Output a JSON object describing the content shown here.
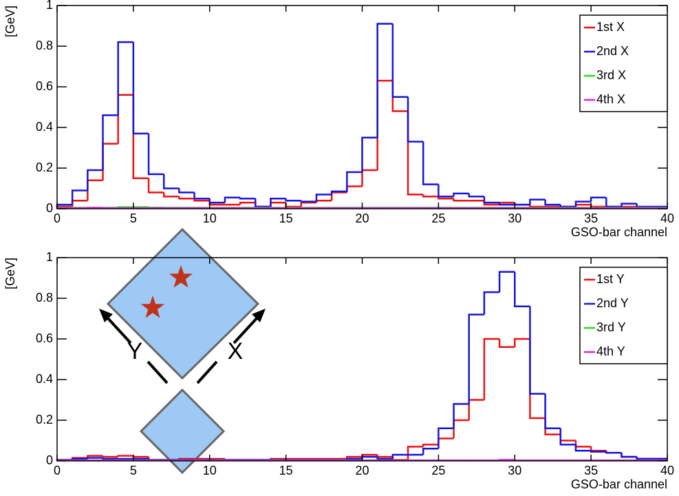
{
  "chart_data": [
    {
      "type": "histogram",
      "ylabel": "[GeV]",
      "xlabel": "GSO-bar channel",
      "bins": [
        0,
        1,
        2,
        3,
        4,
        5,
        6,
        7,
        8,
        9,
        10,
        11,
        12,
        13,
        14,
        15,
        16,
        17,
        18,
        19,
        20,
        21,
        22,
        23,
        24,
        25,
        26,
        27,
        28,
        29,
        30,
        31,
        32,
        33,
        34,
        35,
        36,
        37,
        38,
        39,
        40
      ],
      "xlim": [
        0,
        40
      ],
      "ylim": [
        0,
        1
      ],
      "xticks": [
        0,
        5,
        10,
        15,
        20,
        25,
        30,
        35,
        40
      ],
      "yticks": [
        0,
        0.2,
        0.4,
        0.6,
        0.8,
        1
      ],
      "legend": "upper right",
      "series": [
        {
          "name": "1st X",
          "color": "#ee1111",
          "values": [
            0.01,
            0.04,
            0.14,
            0.32,
            0.56,
            0.15,
            0.08,
            0.06,
            0.05,
            0.04,
            0.02,
            0.02,
            0.03,
            0.01,
            0.03,
            0.01,
            0.03,
            0.04,
            0.08,
            0.11,
            0.19,
            0.63,
            0.48,
            0.07,
            0.06,
            0.05,
            0.04,
            0.04,
            0.02,
            0.03,
            0.02,
            0.01,
            0.01,
            0.01,
            0.02,
            0.01,
            0.01,
            0.01,
            0.005,
            0.005
          ]
        },
        {
          "name": "2nd X",
          "color": "#1515dd",
          "values": [
            0.02,
            0.09,
            0.19,
            0.46,
            0.82,
            0.37,
            0.17,
            0.1,
            0.08,
            0.05,
            0.03,
            0.055,
            0.05,
            0.01,
            0.05,
            0.04,
            0.035,
            0.07,
            0.085,
            0.18,
            0.35,
            0.91,
            0.55,
            0.33,
            0.12,
            0.06,
            0.075,
            0.06,
            0.03,
            0.02,
            0.02,
            0.045,
            0.02,
            0.01,
            0.035,
            0.055,
            0.01,
            0.025,
            0.01,
            0.01
          ]
        },
        {
          "name": "3rd X",
          "color": "#22dd22",
          "values": [
            0.005,
            0.005,
            0.005,
            0.005,
            0.008,
            0.008,
            0.006,
            0.005,
            0.005,
            0.005,
            0.005,
            0.005,
            0.005,
            0.005,
            0.005,
            0.005,
            0.005,
            0.005,
            0.005,
            0.005,
            0.005,
            0.005,
            0.005,
            0.005,
            0.005,
            0.005,
            0.005,
            0.005,
            0.005,
            0.005,
            0.005,
            0.005,
            0.005,
            0.005,
            0.005,
            0.005,
            0.005,
            0.005,
            0.005,
            0.005
          ]
        },
        {
          "name": "4th X",
          "color": "#dd22dd",
          "values": [
            0.003,
            0.003,
            0.005,
            0.003,
            0.003,
            0.003,
            0.003,
            0.003,
            0.003,
            0.003,
            0.003,
            0.003,
            0.003,
            0.003,
            0.003,
            0.003,
            0.003,
            0.003,
            0.003,
            0.003,
            0.003,
            0.003,
            0.003,
            0.003,
            0.003,
            0.003,
            0.003,
            0.003,
            0.003,
            0.003,
            0.003,
            0.003,
            0.003,
            0.003,
            0.003,
            0.003,
            0.003,
            0.003,
            0.003,
            0.003
          ]
        }
      ]
    },
    {
      "type": "histogram",
      "ylabel": "[GeV]",
      "xlabel": "GSO-bar channel",
      "bins": [
        0,
        1,
        2,
        3,
        4,
        5,
        6,
        7,
        8,
        9,
        10,
        11,
        12,
        13,
        14,
        15,
        16,
        17,
        18,
        19,
        20,
        21,
        22,
        23,
        24,
        25,
        26,
        27,
        28,
        29,
        30,
        31,
        32,
        33,
        34,
        35,
        36,
        37,
        38,
        39,
        40
      ],
      "xlim": [
        0,
        40
      ],
      "ylim": [
        0,
        1
      ],
      "xticks": [
        0,
        5,
        10,
        15,
        20,
        25,
        30,
        35,
        40
      ],
      "yticks": [
        0,
        0.2,
        0.4,
        0.6,
        0.8,
        1
      ],
      "legend": "upper right",
      "annotations": [
        "Y",
        "X"
      ],
      "series": [
        {
          "name": "1st Y",
          "color": "#ee1111",
          "values": [
            0.005,
            0.015,
            0.025,
            0.02,
            0.025,
            0.02,
            0.005,
            0.005,
            0.01,
            0.01,
            0.01,
            0.005,
            0.005,
            0.005,
            0.01,
            0.01,
            0.01,
            0.01,
            0.01,
            0.02,
            0.03,
            0.02,
            0.005,
            0.07,
            0.08,
            0.11,
            0.2,
            0.3,
            0.6,
            0.56,
            0.6,
            0.21,
            0.13,
            0.1,
            0.07,
            0.05,
            0.04,
            0.02,
            0.01,
            0.01
          ]
        },
        {
          "name": "2nd Y",
          "color": "#1515dd",
          "values": [
            0.005,
            0.01,
            0.015,
            0.01,
            0.01,
            0.01,
            0.005,
            0.005,
            0.005,
            0.005,
            0.005,
            0.005,
            0.005,
            0.005,
            0.005,
            0.005,
            0.005,
            0.005,
            0.005,
            0.01,
            0.02,
            0.01,
            0.03,
            0.03,
            0.06,
            0.16,
            0.28,
            0.72,
            0.83,
            0.93,
            0.76,
            0.33,
            0.16,
            0.08,
            0.05,
            0.045,
            0.04,
            0.02,
            0.01,
            0.01
          ]
        },
        {
          "name": "3rd Y",
          "color": "#22dd22",
          "values": [
            0.003,
            0.003,
            0.003,
            0.003,
            0.003,
            0.003,
            0.003,
            0.003,
            0.003,
            0.003,
            0.003,
            0.003,
            0.003,
            0.003,
            0.003,
            0.003,
            0.003,
            0.003,
            0.003,
            0.003,
            0.003,
            0.003,
            0.003,
            0.003,
            0.003,
            0.003,
            0.003,
            0.003,
            0.003,
            0.003,
            0.003,
            0.003,
            0.003,
            0.003,
            0.003,
            0.003,
            0.003,
            0.003,
            0.003,
            0.003
          ]
        },
        {
          "name": "4th Y",
          "color": "#dd22dd",
          "values": [
            0.002,
            0.002,
            0.002,
            0.002,
            0.002,
            0.002,
            0.002,
            0.002,
            0.002,
            0.002,
            0.002,
            0.002,
            0.002,
            0.002,
            0.002,
            0.002,
            0.002,
            0.002,
            0.002,
            0.002,
            0.002,
            0.002,
            0.002,
            0.002,
            0.002,
            0.002,
            0.002,
            0.002,
            0.002,
            0.005,
            0.002,
            0.002,
            0.002,
            0.002,
            0.002,
            0.002,
            0.002,
            0.002,
            0.002,
            0.002
          ]
        }
      ]
    }
  ]
}
